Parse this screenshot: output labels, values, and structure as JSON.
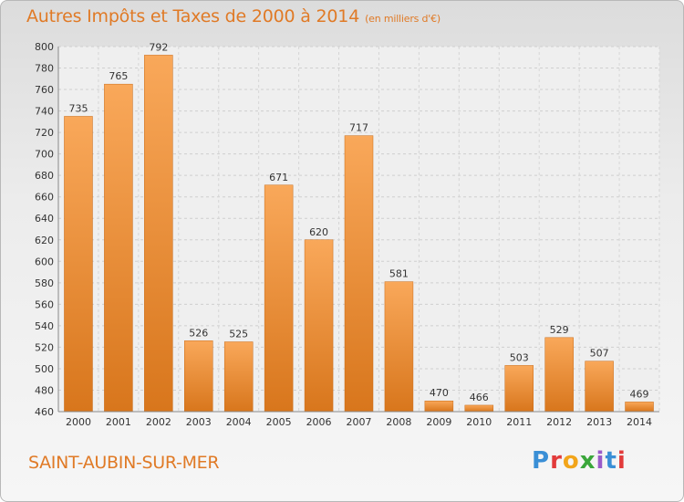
{
  "title": "Autres Impôts et Taxes de 2000 à 2014",
  "subtitle": "(en milliers d'€)",
  "city": "SAINT-AUBIN-SUR-MER",
  "brand": "Proxiti",
  "colors": {
    "accent": "#e07a26",
    "bar_top": "#f9a85a",
    "bar_bottom": "#d8761c"
  },
  "chart_data": {
    "type": "bar",
    "categories": [
      "2000",
      "2001",
      "2002",
      "2003",
      "2004",
      "2005",
      "2006",
      "2007",
      "2008",
      "2009",
      "2010",
      "2011",
      "2012",
      "2013",
      "2014"
    ],
    "values": [
      735,
      765,
      792,
      526,
      525,
      671,
      620,
      717,
      581,
      470,
      466,
      503,
      529,
      507,
      469
    ],
    "ylim": [
      460,
      800
    ],
    "yticks": [
      460,
      480,
      500,
      520,
      540,
      560,
      580,
      600,
      620,
      640,
      660,
      680,
      700,
      720,
      740,
      760,
      780,
      800
    ],
    "grid": true
  }
}
